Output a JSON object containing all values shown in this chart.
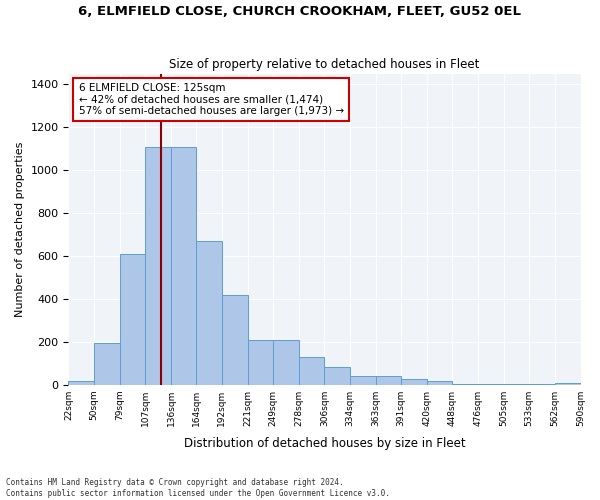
{
  "title_main": "6, ELMFIELD CLOSE, CHURCH CROOKHAM, FLEET, GU52 0EL",
  "title_sub": "Size of property relative to detached houses in Fleet",
  "xlabel": "Distribution of detached houses by size in Fleet",
  "ylabel": "Number of detached properties",
  "bar_color": "#aec6e8",
  "bar_edgecolor": "#5a9fd4",
  "vline_x": 125,
  "vline_color": "#8b0000",
  "annotation_text": "6 ELMFIELD CLOSE: 125sqm\n← 42% of detached houses are smaller (1,474)\n57% of semi-detached houses are larger (1,973) →",
  "annotation_box_color": "#ffffff",
  "annotation_box_edgecolor": "#cc0000",
  "bins": [
    22,
    50,
    79,
    107,
    136,
    164,
    192,
    221,
    249,
    278,
    306,
    334,
    363,
    391,
    420,
    448,
    476,
    505,
    533,
    562,
    590
  ],
  "heights": [
    15,
    193,
    610,
    1110,
    1110,
    670,
    420,
    210,
    210,
    130,
    80,
    40,
    40,
    25,
    15,
    5,
    5,
    5,
    5,
    10
  ],
  "ylim": [
    0,
    1450
  ],
  "yticks": [
    0,
    200,
    400,
    600,
    800,
    1000,
    1200,
    1400
  ],
  "footnote": "Contains HM Land Registry data © Crown copyright and database right 2024.\nContains public sector information licensed under the Open Government Licence v3.0.",
  "bg_color": "#f0f4f8"
}
